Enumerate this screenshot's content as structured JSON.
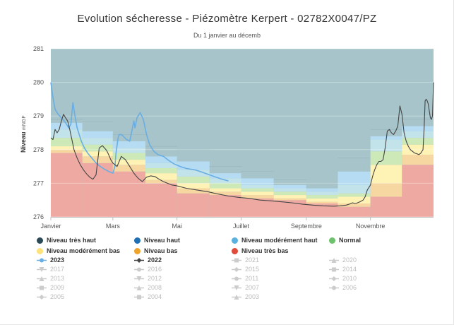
{
  "chart_data": {
    "type": "area",
    "title": "Evolution sécheresse - Piézomètre Kerpert - 02782X0047/PZ",
    "subtitle": "Du 1 janvier au décemb",
    "ylabel": "Niveau",
    "yunit": "mNGF",
    "ylim": [
      276,
      281
    ],
    "yticks": [
      "276",
      "277",
      "278",
      "279",
      "280",
      "281"
    ],
    "xlim": [
      1,
      365
    ],
    "xticks": [
      {
        "label": "Janvier",
        "day": 1
      },
      {
        "label": "Mars",
        "day": 60
      },
      {
        "label": "Mai",
        "day": 121
      },
      {
        "label": "Juillet",
        "day": 182
      },
      {
        "label": "Septembre",
        "day": 244
      },
      {
        "label": "Novembre",
        "day": 305
      }
    ],
    "bands_order": [
      "Niveau très bas",
      "Niveau bas",
      "Niveau modérément bas",
      "Normal",
      "Niveau modérément haut",
      "Niveau haut",
      "Niveau très haut"
    ],
    "band_colors": [
      "#eeaaa2",
      "#f6d7a1",
      "#fff2b5",
      "#cde9b7",
      "#c2e3ea",
      "#b5dcf3",
      "#a6c4c9"
    ],
    "band_segments": [
      {
        "start": 1,
        "end": 31,
        "b": [
          277.9,
          278.0,
          278.1,
          278.35,
          278.6,
          278.8,
          278.9
        ]
      },
      {
        "start": 31,
        "end": 60,
        "b": [
          277.6,
          277.8,
          277.95,
          278.15,
          278.35,
          278.55,
          278.85
        ]
      },
      {
        "start": 60,
        "end": 91,
        "b": [
          277.35,
          277.55,
          277.7,
          277.9,
          278.05,
          278.25,
          278.45
        ]
      },
      {
        "start": 91,
        "end": 121,
        "b": [
          277.0,
          277.1,
          277.3,
          277.45,
          277.6,
          277.8,
          278.1
        ]
      },
      {
        "start": 121,
        "end": 152,
        "b": [
          276.7,
          276.85,
          277.0,
          277.2,
          277.4,
          277.65,
          278.0
        ]
      },
      {
        "start": 152,
        "end": 182,
        "b": [
          276.65,
          276.75,
          276.85,
          277.0,
          277.15,
          277.3,
          277.5
        ]
      },
      {
        "start": 182,
        "end": 213,
        "b": [
          276.55,
          276.65,
          276.75,
          276.85,
          276.95,
          277.15,
          277.35
        ]
      },
      {
        "start": 213,
        "end": 244,
        "b": [
          276.5,
          276.55,
          276.65,
          276.75,
          276.85,
          276.95,
          277.1
        ]
      },
      {
        "start": 244,
        "end": 274,
        "b": [
          276.4,
          276.45,
          276.55,
          276.65,
          276.75,
          276.85,
          277.0
        ]
      },
      {
        "start": 274,
        "end": 305,
        "b": [
          276.3,
          276.4,
          276.6,
          276.7,
          276.95,
          277.35,
          277.75
        ]
      },
      {
        "start": 305,
        "end": 335,
        "b": [
          276.6,
          277.0,
          277.55,
          277.95,
          278.3,
          278.4,
          278.6
        ]
      },
      {
        "start": 335,
        "end": 365,
        "b": [
          277.55,
          277.85,
          278.15,
          278.35,
          278.55,
          278.7,
          278.9
        ]
      }
    ],
    "series": [
      {
        "name": "2023",
        "color": "#6aaee3",
        "x": [
          1,
          3,
          5,
          8,
          11,
          15,
          18,
          20,
          22,
          24,
          26,
          28,
          30,
          33,
          36,
          40,
          44,
          48,
          52,
          56,
          60,
          62,
          63,
          65,
          66,
          68,
          70,
          73,
          76,
          78,
          80,
          81,
          83,
          86,
          89,
          92,
          95,
          99,
          103,
          108,
          113,
          118,
          124,
          130,
          138,
          145,
          152,
          158,
          164,
          170
        ],
        "y": [
          280.0,
          279.55,
          279.2,
          279.05,
          278.95,
          278.8,
          278.65,
          278.75,
          279.4,
          279.0,
          278.65,
          278.45,
          278.25,
          278.05,
          277.9,
          277.75,
          277.6,
          277.5,
          277.42,
          277.35,
          277.3,
          277.5,
          277.9,
          278.35,
          278.45,
          278.45,
          278.4,
          278.3,
          278.25,
          278.55,
          278.85,
          278.65,
          278.95,
          279.1,
          278.9,
          278.45,
          278.15,
          277.95,
          277.85,
          277.8,
          277.68,
          277.58,
          277.5,
          277.44,
          277.4,
          277.33,
          277.25,
          277.18,
          277.12,
          277.07
        ]
      },
      {
        "name": "2022",
        "color": "#444444",
        "x": [
          1,
          3,
          5,
          7,
          9,
          11,
          13,
          15,
          17,
          19,
          21,
          23,
          26,
          29,
          32,
          35,
          38,
          41,
          44,
          47,
          50,
          52,
          54,
          56,
          58,
          60,
          62,
          64,
          66,
          68,
          70,
          72,
          74,
          76,
          78,
          80,
          84,
          88,
          92,
          96,
          100,
          104,
          108,
          112,
          116,
          120,
          130,
          140,
          150,
          160,
          170,
          180,
          190,
          200,
          210,
          220,
          230,
          240,
          250,
          260,
          270,
          276,
          282,
          285,
          288,
          290,
          292,
          295,
          298,
          300,
          302,
          305,
          307,
          309,
          311,
          313,
          315,
          317,
          319,
          321,
          323,
          325,
          327,
          329,
          331,
          333,
          335,
          337,
          339,
          341,
          343,
          345,
          347,
          349,
          351,
          353,
          355,
          356,
          357,
          358,
          359,
          360,
          361,
          362,
          363,
          364,
          365
        ],
        "y": [
          278.35,
          278.3,
          278.6,
          278.5,
          278.6,
          278.85,
          279.05,
          278.95,
          278.85,
          278.6,
          278.3,
          278.0,
          277.75,
          277.55,
          277.4,
          277.28,
          277.18,
          277.12,
          277.25,
          278.05,
          278.12,
          278.05,
          277.98,
          277.85,
          277.7,
          277.6,
          277.55,
          277.5,
          277.65,
          277.8,
          277.75,
          277.7,
          277.6,
          277.5,
          277.4,
          277.3,
          277.15,
          277.05,
          277.18,
          277.22,
          277.2,
          277.12,
          277.05,
          277.0,
          276.95,
          276.93,
          276.85,
          276.8,
          276.75,
          276.68,
          276.62,
          276.58,
          276.55,
          276.5,
          276.48,
          276.45,
          276.42,
          276.38,
          276.35,
          276.33,
          276.32,
          276.33,
          276.35,
          276.38,
          276.42,
          276.4,
          276.41,
          276.45,
          276.5,
          276.6,
          276.8,
          276.95,
          277.2,
          277.4,
          277.55,
          277.65,
          277.65,
          277.7,
          278.05,
          278.55,
          278.6,
          278.5,
          278.45,
          278.55,
          278.7,
          279.3,
          279.05,
          278.5,
          278.25,
          278.1,
          278.0,
          277.95,
          277.9,
          277.88,
          277.85,
          277.9,
          278.0,
          278.6,
          279.45,
          279.5,
          279.45,
          279.35,
          279.15,
          278.95,
          278.9,
          279.0,
          280.0
        ]
      }
    ]
  },
  "legend": {
    "rows": [
      [
        {
          "label": "Niveau très haut",
          "symbol": "dot",
          "color": "#2b4a55",
          "active": true
        },
        {
          "label": "Niveau haut",
          "symbol": "dot",
          "color": "#1f6fb5",
          "active": true
        },
        {
          "label": "Niveau modérément haut",
          "symbol": "dot",
          "color": "#5ab0de",
          "active": true
        },
        {
          "label": "Normal",
          "symbol": "dot",
          "color": "#6dc26b",
          "active": true
        }
      ],
      [
        {
          "label": "Niveau modérément bas",
          "symbol": "dot",
          "color": "#ffe27a",
          "active": true
        },
        {
          "label": "Niveau bas",
          "symbol": "dot",
          "color": "#f0a32b",
          "active": true
        },
        {
          "label": "Niveau très bas",
          "symbol": "dot",
          "color": "#e04b3c",
          "active": true
        },
        null
      ],
      [
        {
          "label": "2023",
          "symbol": "line-circle",
          "color": "#6aaee3",
          "active": true
        },
        {
          "label": "2022",
          "symbol": "line-diamond",
          "color": "#444444",
          "active": true
        },
        {
          "label": "2021",
          "symbol": "line-square",
          "color": "#cccccc",
          "active": false
        },
        {
          "label": "2020",
          "symbol": "line-triangle",
          "color": "#cccccc",
          "active": false
        }
      ],
      [
        {
          "label": "2017",
          "symbol": "line-triangle-down",
          "color": "#cccccc",
          "active": false
        },
        {
          "label": "2016",
          "symbol": "line-circle",
          "color": "#cccccc",
          "active": false
        },
        {
          "label": "2015",
          "symbol": "line-diamond",
          "color": "#cccccc",
          "active": false
        },
        {
          "label": "2014",
          "symbol": "line-square",
          "color": "#cccccc",
          "active": false
        }
      ],
      [
        {
          "label": "2013",
          "symbol": "line-triangle",
          "color": "#cccccc",
          "active": false
        },
        {
          "label": "2012",
          "symbol": "line-triangle-down",
          "color": "#cccccc",
          "active": false
        },
        {
          "label": "2011",
          "symbol": "line-circle",
          "color": "#cccccc",
          "active": false
        },
        {
          "label": "2010",
          "symbol": "line-diamond",
          "color": "#cccccc",
          "active": false
        }
      ],
      [
        {
          "label": "2009",
          "symbol": "line-square",
          "color": "#cccccc",
          "active": false
        },
        {
          "label": "2008",
          "symbol": "line-triangle",
          "color": "#cccccc",
          "active": false
        },
        {
          "label": "2007",
          "symbol": "line-triangle-down",
          "color": "#cccccc",
          "active": false
        },
        {
          "label": "2006",
          "symbol": "line-circle",
          "color": "#cccccc",
          "active": false
        }
      ],
      [
        {
          "label": "2005",
          "symbol": "line-diamond",
          "color": "#cccccc",
          "active": false
        },
        {
          "label": "2004",
          "symbol": "line-square",
          "color": "#cccccc",
          "active": false
        },
        {
          "label": "2003",
          "symbol": "line-triangle",
          "color": "#cccccc",
          "active": false
        },
        null
      ]
    ]
  }
}
